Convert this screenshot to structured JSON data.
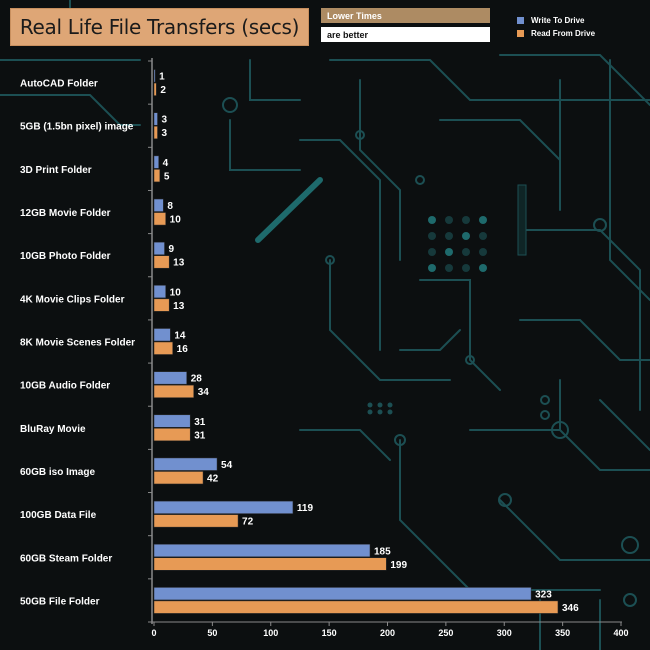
{
  "title": "Real Life File Transfers (secs)",
  "notes": {
    "line1": "Lower Times",
    "line2": "are better"
  },
  "colors": {
    "write": "#7190cf",
    "read": "#e79a55",
    "background": "#0c0f10",
    "circuit": "#1c4f53"
  },
  "chart_data": {
    "type": "bar",
    "orientation": "horizontal",
    "categories": [
      "AutoCAD Folder",
      "5GB (1.5bn pixel) image",
      "3D Print Folder",
      "12GB Movie Folder",
      "10GB Photo Folder",
      "4K Movie Clips Folder",
      "8K Movie Scenes Folder",
      "10GB Audio Folder",
      "BluRay Movie",
      "60GB iso Image",
      "100GB Data File",
      "60GB Steam Folder",
      "50GB File Folder"
    ],
    "series": [
      {
        "name": "Write To  Drive",
        "values": [
          1,
          3,
          4,
          8,
          9,
          10,
          14,
          28,
          31,
          54,
          119,
          185,
          323
        ]
      },
      {
        "name": "Read From  Drive",
        "values": [
          2,
          3,
          5,
          10,
          13,
          13,
          16,
          34,
          31,
          42,
          72,
          199,
          346
        ]
      }
    ],
    "xlim": [
      0,
      400
    ],
    "xticks": [
      0,
      50,
      100,
      150,
      200,
      250,
      300,
      350,
      400
    ],
    "legend": "top-right",
    "grid": false
  }
}
